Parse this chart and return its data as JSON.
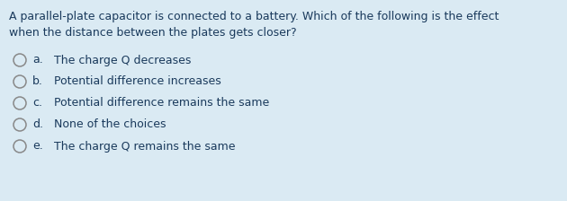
{
  "background_color": "#daeaf3",
  "question_line1": "A parallel-plate capacitor is connected to a battery. Which of the following is the effect",
  "question_line2": "when the distance between the plates gets closer?",
  "options": [
    {
      "letter": "a.",
      "text": "The charge Q decreases"
    },
    {
      "letter": "b.",
      "text": "Potential difference increases"
    },
    {
      "letter": "c.",
      "text": "Potential difference remains the same"
    },
    {
      "letter": "d.",
      "text": "None of the choices"
    },
    {
      "letter": "e.",
      "text": "The charge Q remains the same"
    }
  ],
  "text_color": "#1a3a5c",
  "font_size_question": 9.0,
  "font_size_options": 9.0,
  "circle_color": "#888888",
  "circle_facecolor": "none"
}
